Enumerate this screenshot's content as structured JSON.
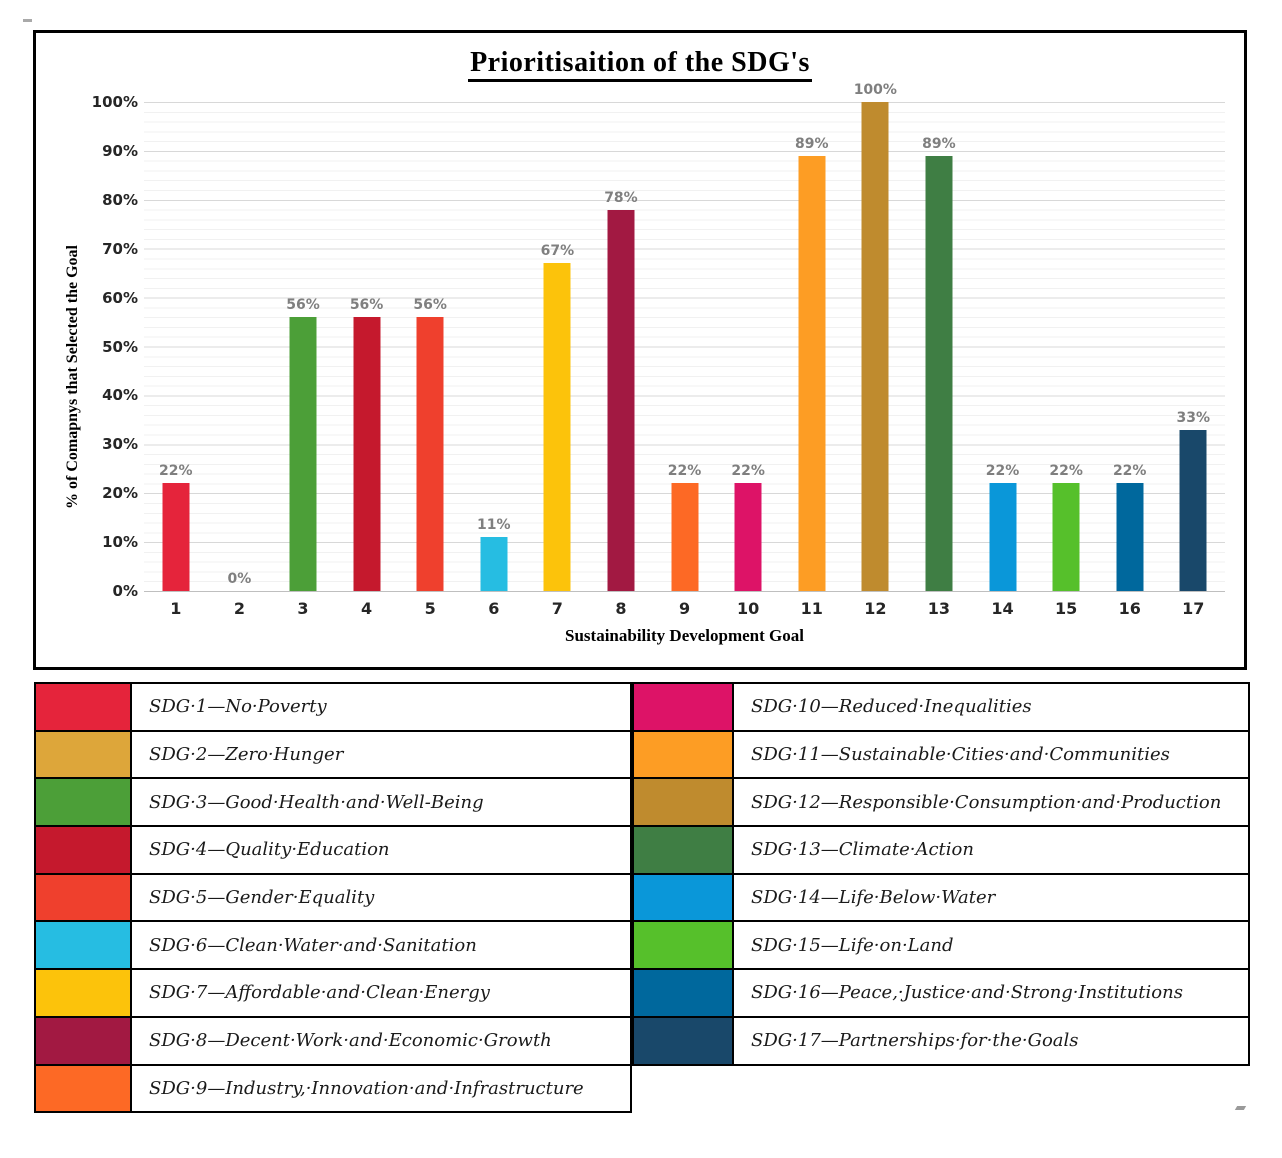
{
  "chart_data": {
    "type": "bar",
    "title": "Prioritisaition of the SDG's",
    "xlabel": "Sustainability Development Goal",
    "ylabel": "% of Comapnys that Selected the Goal",
    "categories": [
      "1",
      "2",
      "3",
      "4",
      "5",
      "6",
      "7",
      "8",
      "9",
      "10",
      "11",
      "12",
      "13",
      "14",
      "15",
      "16",
      "17"
    ],
    "values": [
      22,
      0,
      56,
      56,
      56,
      11,
      67,
      78,
      22,
      22,
      89,
      100,
      89,
      22,
      22,
      22,
      33
    ],
    "data_labels": [
      "22%",
      "0%",
      "56%",
      "56%",
      "56%",
      "11%",
      "67%",
      "78%",
      "22%",
      "22%",
      "89%",
      "100%",
      "89%",
      "22%",
      "22%",
      "22%",
      "33%"
    ],
    "bar_colors": [
      "#E5243B",
      "#DDA63A",
      "#4C9F38",
      "#C5192D",
      "#EF402D",
      "#26BDE2",
      "#FCC30B",
      "#A21942",
      "#FD6925",
      "#DD1367",
      "#FD9D24",
      "#BF8B2E",
      "#3F7E44",
      "#0A97D9",
      "#56C02B",
      "#00689D",
      "#19486A"
    ],
    "ylim": [
      0,
      100
    ],
    "y_ticks": [
      "0%",
      "10%",
      "20%",
      "30%",
      "40%",
      "50%",
      "60%",
      "70%",
      "80%",
      "90%",
      "100%"
    ],
    "grid": {
      "major_step_pct": 10,
      "minor_step_pct": 2,
      "major_color": "#d8d8d8",
      "minor_color": "#f1f1f1"
    },
    "legend_position": "below"
  },
  "legend": {
    "left_column": [
      {
        "color": "#E5243B",
        "label": "SDG·1—No·Poverty"
      },
      {
        "color": "#DDA63A",
        "label": "SDG·2—Zero·Hunger"
      },
      {
        "color": "#4C9F38",
        "label": "SDG·3—Good·Health·and·Well-Being"
      },
      {
        "color": "#C5192D",
        "label": "SDG·4—Quality·Education"
      },
      {
        "color": "#EF402D",
        "label": "SDG·5—Gender·Equality"
      },
      {
        "color": "#26BDE2",
        "label": "SDG·6—Clean·Water·and·Sanitation"
      },
      {
        "color": "#FCC30B",
        "label": "SDG·7—Affordable·and·Clean·Energy"
      },
      {
        "color": "#A21942",
        "label": "SDG·8—Decent·Work·and·Economic·Growth"
      },
      {
        "color": "#FD6925",
        "label": "SDG·9—Industry,·Innovation·and·Infrastructure"
      }
    ],
    "right_column": [
      {
        "color": "#DD1367",
        "label": "SDG·10—Reduced·Inequalities"
      },
      {
        "color": "#FD9D24",
        "label": "SDG·11—Sustainable·Cities·and·Communities"
      },
      {
        "color": "#BF8B2E",
        "label": "SDG·12—Responsible·Consumption·and·Production"
      },
      {
        "color": "#3F7E44",
        "label": "SDG·13—Climate·Action"
      },
      {
        "color": "#0A97D9",
        "label": "SDG·14—Life·Below·Water"
      },
      {
        "color": "#56C02B",
        "label": "SDG·15—Life·on·Land"
      },
      {
        "color": "#00689D",
        "label": "SDG·16—Peace,·Justice·and·Strong·Institutions"
      },
      {
        "color": "#19486A",
        "label": "SDG·17—Partnerships·for·the·Goals"
      }
    ]
  }
}
